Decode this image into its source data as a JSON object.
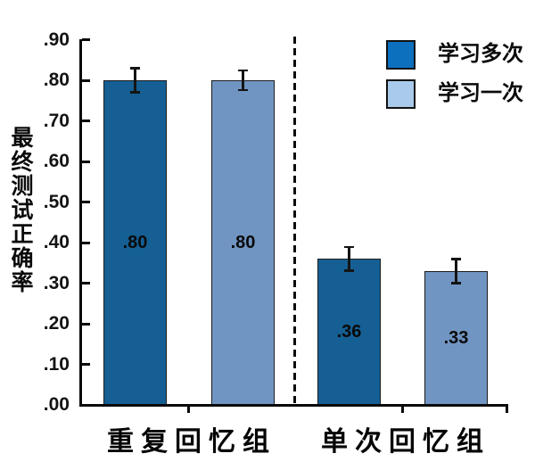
{
  "figure": {
    "background": "#ffffff",
    "axis_color": "#0a0a0a",
    "text_color": "#0a0a0a"
  },
  "chart_data": {
    "type": "bar",
    "title": "",
    "xlabel": "",
    "ylabel": "最终测试正确率",
    "categories": [
      "重复回忆组",
      "单次回忆组"
    ],
    "series": [
      {
        "name": "学习多次",
        "color": "#155f94",
        "legend_color": "#0c70bf",
        "values": [
          0.8,
          0.36
        ],
        "errors": [
          0.03,
          0.03
        ],
        "value_labels": [
          ".80",
          ".36"
        ]
      },
      {
        "name": "学习一次",
        "color": "#7195c2",
        "legend_color": "#a9caeb",
        "values": [
          0.8,
          0.33
        ],
        "errors": [
          0.025,
          0.03
        ],
        "value_labels": [
          ".80",
          ".33"
        ]
      }
    ],
    "ylim": [
      0.0,
      0.9
    ],
    "ytick_step": 0.1,
    "ytick_labels": [
      ".00",
      ".10",
      ".20",
      ".30",
      ".40",
      ".50",
      ".60",
      ".70",
      ".80",
      ".90"
    ],
    "grid": false,
    "legend_position": "top-right",
    "separator": {
      "style": "dashed",
      "color": "#0a0a0a",
      "between_groups": true
    },
    "error_bars": true
  }
}
